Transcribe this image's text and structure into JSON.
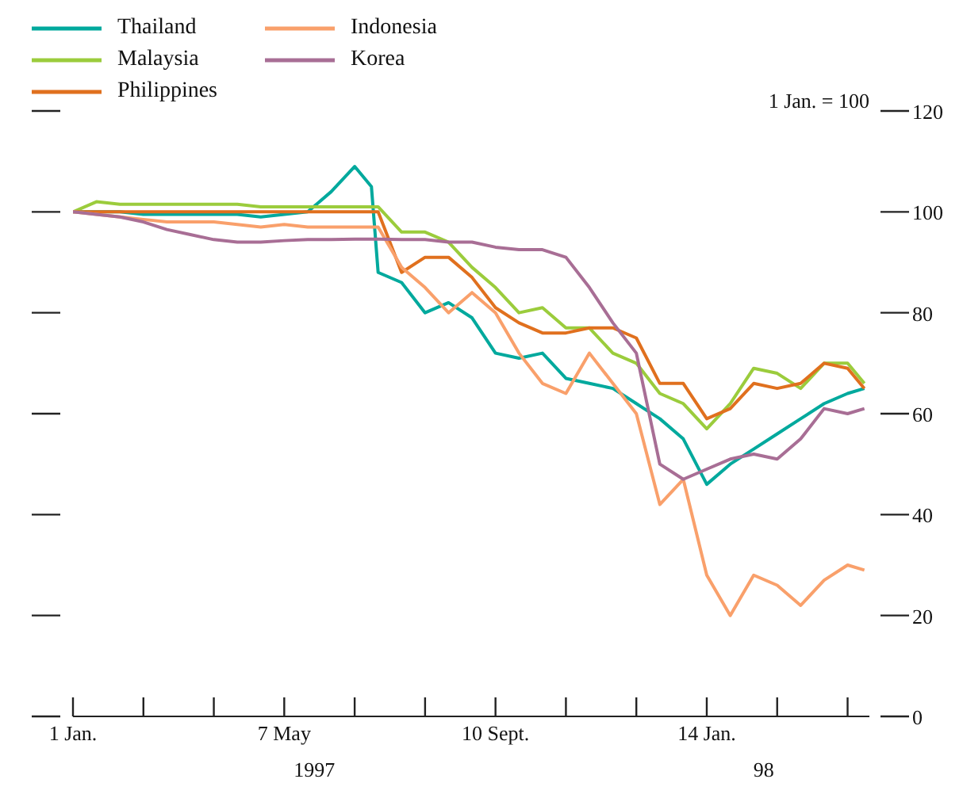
{
  "chart_data": {
    "type": "line",
    "ylabel": "1 Jan. = 100",
    "x": [
      "1997-01-01",
      "1997-01-15",
      "1997-01-29",
      "1997-02-12",
      "1997-02-26",
      "1997-03-12",
      "1997-03-26",
      "1997-04-09",
      "1997-04-23",
      "1997-05-07",
      "1997-05-21",
      "1997-06-04",
      "1997-06-18",
      "1997-06-28",
      "1997-07-02",
      "1997-07-16",
      "1997-07-30",
      "1997-08-13",
      "1997-08-27",
      "1997-09-10",
      "1997-09-24",
      "1997-10-08",
      "1997-10-22",
      "1997-11-05",
      "1997-11-19",
      "1997-12-03",
      "1997-12-17",
      "1997-12-31",
      "1998-01-14",
      "1998-01-28",
      "1998-02-11",
      "1998-02-25",
      "1998-03-11",
      "1998-03-25",
      "1998-04-08",
      "1998-04-18"
    ],
    "series": [
      {
        "name": "Thailand",
        "color": "#00a99d",
        "values": [
          100,
          100,
          100,
          99.5,
          99.5,
          99.5,
          99.5,
          99.5,
          99,
          99.5,
          100,
          104,
          109,
          105,
          88,
          86,
          80,
          82,
          79,
          72,
          71,
          72,
          67,
          66,
          65,
          62,
          59,
          55,
          46,
          50,
          53,
          56,
          59,
          62,
          64,
          65
        ]
      },
      {
        "name": "Malaysia",
        "color": "#9bcc3c",
        "values": [
          100,
          102,
          101.5,
          101.5,
          101.5,
          101.5,
          101.5,
          101.5,
          101,
          101,
          101,
          101,
          101,
          101,
          101,
          96,
          96,
          94,
          89,
          85,
          80,
          81,
          77,
          77,
          72,
          70,
          64,
          62,
          57,
          62,
          69,
          68,
          65,
          70,
          70,
          66
        ]
      },
      {
        "name": "Philippines",
        "color": "#e0701e",
        "values": [
          100,
          100,
          100,
          100,
          100,
          100,
          100,
          100,
          100,
          100,
          100,
          100,
          100,
          100,
          100,
          88,
          91,
          91,
          87,
          81,
          78,
          76,
          76,
          77,
          77,
          75,
          66,
          66,
          59,
          61,
          66,
          65,
          66,
          70,
          69,
          65
        ]
      },
      {
        "name": "Indonesia",
        "color": "#f9a06b",
        "values": [
          100,
          99.5,
          99,
          98.5,
          98,
          98,
          98,
          97.5,
          97,
          97.5,
          97,
          97,
          97,
          97,
          97,
          89,
          85,
          80,
          84,
          80,
          72,
          66,
          64,
          72,
          66,
          60,
          42,
          47,
          28,
          20,
          28,
          26,
          22,
          27,
          30,
          29
        ]
      },
      {
        "name": "Korea",
        "color": "#a86e95",
        "values": [
          100,
          99.5,
          99,
          98,
          96.5,
          95.5,
          94.5,
          94,
          94,
          94.3,
          94.5,
          94.5,
          94.6,
          94.6,
          94.6,
          94.5,
          94.5,
          94,
          94,
          93,
          92.5,
          92.5,
          91,
          85,
          78,
          72,
          50,
          47,
          49,
          51,
          52,
          51,
          55,
          61,
          60,
          61
        ]
      }
    ],
    "xlim": [
      "1997-01-01",
      "1998-04-21"
    ],
    "xticks": [
      {
        "value": "1997-01-01",
        "label": "1 Jan."
      },
      {
        "value": "1997-02-12",
        "label": null
      },
      {
        "value": "1997-03-26",
        "label": null
      },
      {
        "value": "1997-05-07",
        "label": "7 May"
      },
      {
        "value": "1997-06-18",
        "label": null
      },
      {
        "value": "1997-07-30",
        "label": null
      },
      {
        "value": "1997-09-10",
        "label": "10 Sept."
      },
      {
        "value": "1997-10-22",
        "label": null
      },
      {
        "value": "1997-12-03",
        "label": null
      },
      {
        "value": "1998-01-14",
        "label": "14 Jan."
      },
      {
        "value": "1998-02-25",
        "label": null
      },
      {
        "value": "1998-04-08",
        "label": null
      }
    ],
    "ylim": [
      0,
      120
    ],
    "yticks": [
      0,
      20,
      40,
      60,
      80,
      100,
      120
    ],
    "annotations": [
      "1997",
      "98"
    ],
    "legend": "top left",
    "grid": false
  }
}
